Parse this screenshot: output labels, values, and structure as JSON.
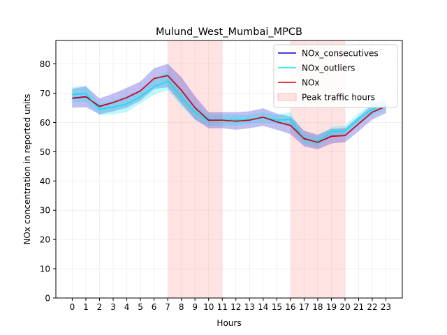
{
  "chart_data": {
    "type": "line",
    "title": "Mulund_West_Mumbai_MPCB",
    "xlabel": "Hours",
    "ylabel": "NOx concentration in reported units",
    "xlim": [
      -1.2,
      24.2
    ],
    "ylim": [
      0,
      88
    ],
    "x": [
      0,
      1,
      2,
      3,
      4,
      5,
      6,
      7,
      8,
      9,
      10,
      11,
      12,
      13,
      14,
      15,
      16,
      17,
      18,
      19,
      20,
      21,
      22,
      23
    ],
    "yticks": [
      0,
      10,
      20,
      30,
      40,
      50,
      60,
      70,
      80
    ],
    "grid": true,
    "legend_position": "top-right",
    "shaded_regions": [
      {
        "name": "Peak traffic hours",
        "from": 7,
        "to": 11,
        "color": "#ffcccc"
      },
      {
        "name": "Peak traffic hours",
        "from": 16,
        "to": 20,
        "color": "#ffcccc"
      }
    ],
    "series": [
      {
        "name": "NOx_consecutives",
        "color": "#0000cc",
        "values": [
          68.3,
          68.8,
          65.5,
          66.8,
          68.5,
          70.8,
          75,
          76,
          71,
          65,
          60.8,
          60.8,
          60.5,
          60.8,
          61.8,
          60.2,
          59,
          54.5,
          53.2,
          55.3,
          55.5,
          59.5,
          63.5,
          65.5
        ],
        "lower": [
          65,
          65.2,
          62.8,
          63.8,
          65,
          67.5,
          71.5,
          72,
          66.5,
          61,
          58,
          58,
          57.5,
          58,
          58.8,
          57.5,
          56,
          51.8,
          50.8,
          52.8,
          53.2,
          57,
          61,
          63.2
        ],
        "upper": [
          71.5,
          72.3,
          68.2,
          69.8,
          71.8,
          74,
          78.5,
          80,
          75.5,
          69,
          63.5,
          63.5,
          63.5,
          63.8,
          64.8,
          63,
          62,
          57.2,
          55.8,
          57.8,
          58,
          62,
          66,
          67.8
        ]
      },
      {
        "name": "NOx_outliers",
        "color": "#00e5ee",
        "values": [
          69.5,
          69.8,
          64.5,
          65.2,
          66.3,
          68.8,
          72.2,
          74.2,
          68.5,
          63.5,
          60.6,
          60.8,
          60.8,
          61,
          61.8,
          60.8,
          61,
          54.2,
          53.5,
          56.8,
          57.2,
          61.2,
          64.5,
          66
        ],
        "lower": [
          67,
          67,
          62.5,
          62.8,
          63.5,
          66.5,
          69.5,
          71,
          65.5,
          61,
          59,
          59,
          59,
          59.5,
          60,
          59.5,
          58.5,
          52.5,
          52,
          55,
          55.5,
          59.5,
          62.5,
          64.5
        ],
        "upper": [
          72,
          72.6,
          66.5,
          67.5,
          69,
          71,
          75,
          77.5,
          71.5,
          66,
          62.5,
          62.5,
          62.5,
          62.5,
          63.5,
          62.5,
          63.5,
          56,
          55.2,
          58.5,
          59,
          63,
          66.5,
          67.5
        ]
      },
      {
        "name": "NOx",
        "color": "#dd0000",
        "values": [
          68.2,
          68.7,
          65.4,
          66.8,
          68.5,
          70.8,
          75,
          76,
          71,
          65,
          60.7,
          60.8,
          60.4,
          60.8,
          61.8,
          60.2,
          59,
          54.4,
          53.2,
          55.2,
          55.5,
          59.5,
          63.5,
          65.5
        ]
      }
    ]
  }
}
